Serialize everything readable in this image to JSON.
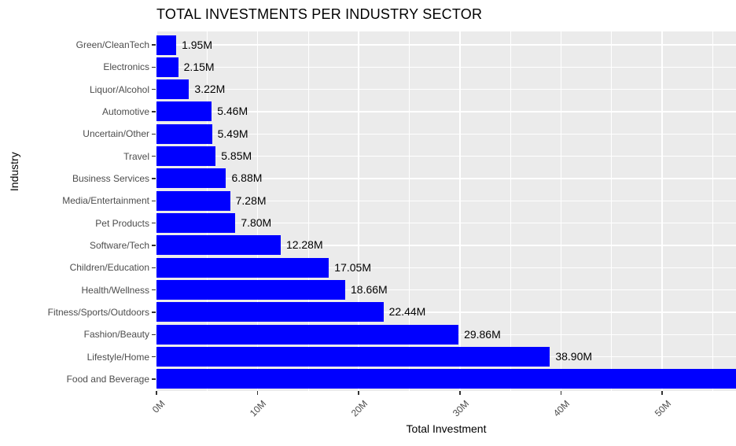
{
  "chart_data": {
    "type": "bar",
    "orientation": "horizontal",
    "title": "TOTAL INVESTMENTS PER INDUSTRY SECTOR",
    "xlabel": "Total Investment",
    "ylabel": "Industry",
    "legend": "none",
    "grid": "on",
    "xlim": [
      0,
      57.3
    ],
    "x_major_tick_interval": 10,
    "x_minor_gridline_interval": 5,
    "x_tick_labels": [
      "0M",
      "10M",
      "20M",
      "30M",
      "40M",
      "50M"
    ],
    "x_tick_values": [
      0,
      10,
      20,
      30,
      40,
      50
    ],
    "unit": "millions",
    "bars": [
      {
        "category": "Green/CleanTech",
        "value": 1.95,
        "value_label": "1.95M",
        "clipped": false
      },
      {
        "category": "Electronics",
        "value": 2.15,
        "value_label": "2.15M",
        "clipped": false
      },
      {
        "category": "Liquor/Alcohol",
        "value": 3.22,
        "value_label": "3.22M",
        "clipped": false
      },
      {
        "category": "Automotive",
        "value": 5.46,
        "value_label": "5.46M",
        "clipped": false
      },
      {
        "category": "Uncertain/Other",
        "value": 5.49,
        "value_label": "5.49M",
        "clipped": false
      },
      {
        "category": "Travel",
        "value": 5.85,
        "value_label": "5.85M",
        "clipped": false
      },
      {
        "category": "Business Services",
        "value": 6.88,
        "value_label": "6.88M",
        "clipped": false
      },
      {
        "category": "Media/Entertainment",
        "value": 7.28,
        "value_label": "7.28M",
        "clipped": false
      },
      {
        "category": "Pet Products",
        "value": 7.8,
        "value_label": "7.80M",
        "clipped": false
      },
      {
        "category": "Software/Tech",
        "value": 12.28,
        "value_label": "12.28M",
        "clipped": false
      },
      {
        "category": "Children/Education",
        "value": 17.05,
        "value_label": "17.05M",
        "clipped": false
      },
      {
        "category": "Health/Wellness",
        "value": 18.66,
        "value_label": "18.66M",
        "clipped": false
      },
      {
        "category": "Fitness/Sports/Outdoors",
        "value": 22.44,
        "value_label": "22.44M",
        "clipped": false
      },
      {
        "category": "Fashion/Beauty",
        "value": 29.86,
        "value_label": "29.86M",
        "clipped": false
      },
      {
        "category": "Lifestyle/Home",
        "value": 38.9,
        "value_label": "38.90M",
        "clipped": false
      },
      {
        "category": "Food and Beverage",
        "value": 57.3,
        "value_label": "",
        "clipped": true
      }
    ],
    "colors": {
      "bar_fill": "#0000ff",
      "panel_background": "#ebebeb",
      "gridline": "#ffffff",
      "axis_text": "#4d4d4d",
      "title_text": "#000000",
      "value_label_text": "#000000"
    }
  }
}
